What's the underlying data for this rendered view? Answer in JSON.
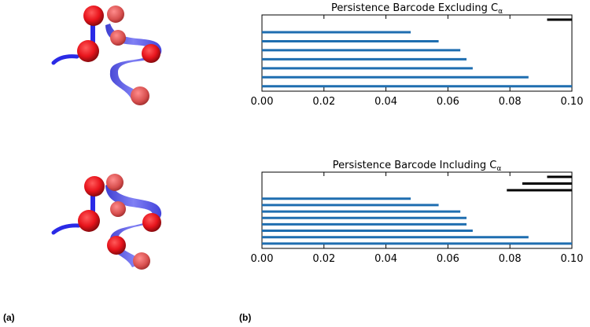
{
  "panel_labels": {
    "a": "(a)",
    "b": "(b)"
  },
  "colors": {
    "bar": "#1f6eb0",
    "long_bar": "#000000",
    "atom": "#e8141c",
    "backbone": "#2a2ae6"
  },
  "chart_data": [
    {
      "type": "barcode",
      "title": "Persistence Barcode Excluding C",
      "title_subscript": "α",
      "xlim": [
        0.0,
        0.1
      ],
      "xticks": [
        "0.00",
        "0.02",
        "0.04",
        "0.06",
        "0.08",
        "0.10"
      ],
      "series": [
        {
          "color": "#000000",
          "intervals": [
            [
              0.092,
              0.1
            ]
          ]
        },
        {
          "color": "#1f6eb0",
          "intervals": [
            [
              0.0,
              0.048
            ],
            [
              0.0,
              0.057
            ],
            [
              0.0,
              0.064
            ],
            [
              0.0,
              0.066
            ],
            [
              0.0,
              0.068
            ],
            [
              0.0,
              0.086
            ],
            [
              0.0,
              0.1
            ]
          ]
        }
      ]
    },
    {
      "type": "barcode",
      "title": "Persistence Barcode Including C",
      "title_subscript": "α",
      "xlim": [
        0.0,
        0.1
      ],
      "xticks": [
        "0.00",
        "0.02",
        "0.04",
        "0.06",
        "0.08",
        "0.10"
      ],
      "series": [
        {
          "color": "#000000",
          "intervals": [
            [
              0.092,
              0.1
            ],
            [
              0.084,
              0.1
            ],
            [
              0.079,
              0.1
            ]
          ]
        },
        {
          "color": "#1f6eb0",
          "intervals": [
            [
              0.0,
              0.048
            ],
            [
              0.0,
              0.057
            ],
            [
              0.0,
              0.064
            ],
            [
              0.0,
              0.066
            ],
            [
              0.0,
              0.066
            ],
            [
              0.0,
              0.068
            ],
            [
              0.0,
              0.086
            ],
            [
              0.0,
              0.1
            ]
          ]
        }
      ]
    }
  ]
}
